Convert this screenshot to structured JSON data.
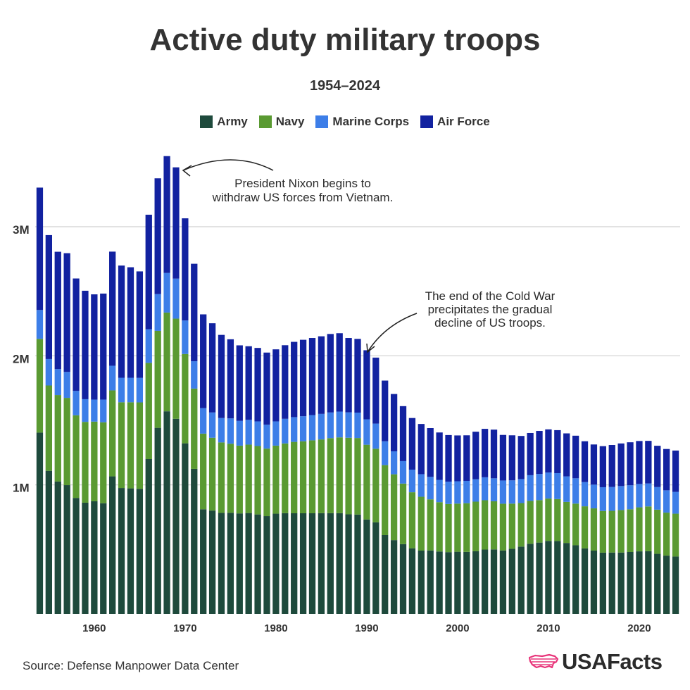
{
  "chart_data": {
    "type": "bar",
    "stacked": true,
    "title": "Active duty military troops",
    "subtitle": "1954–2024",
    "ylim": [
      0,
      3600000
    ],
    "yticks": [
      {
        "value": 1000000,
        "label": "1M"
      },
      {
        "value": 2000000,
        "label": "2M"
      },
      {
        "value": 3000000,
        "label": "3M"
      }
    ],
    "xticks": [
      1960,
      1970,
      1980,
      1990,
      2000,
      2010,
      2020
    ],
    "grid": true,
    "legend_position": "top-center",
    "years": [
      1954,
      1955,
      1956,
      1957,
      1958,
      1959,
      1960,
      1961,
      1962,
      1963,
      1964,
      1965,
      1966,
      1967,
      1968,
      1969,
      1970,
      1971,
      1972,
      1973,
      1974,
      1975,
      1976,
      1977,
      1978,
      1979,
      1980,
      1981,
      1982,
      1983,
      1984,
      1985,
      1986,
      1987,
      1988,
      1989,
      1990,
      1991,
      1992,
      1993,
      1994,
      1995,
      1996,
      1997,
      1998,
      1999,
      2000,
      2001,
      2002,
      2003,
      2004,
      2005,
      2006,
      2007,
      2008,
      2009,
      2010,
      2011,
      2012,
      2013,
      2014,
      2015,
      2016,
      2017,
      2018,
      2019,
      2020,
      2021,
      2022,
      2023,
      2024
    ],
    "series": [
      {
        "name": "Army",
        "color": "#1e4a3c",
        "values": [
          1405000,
          1109000,
          1026000,
          998000,
          899000,
          862000,
          873000,
          858000,
          1066000,
          976000,
          973000,
          969000,
          1200000,
          1442000,
          1570000,
          1512000,
          1322000,
          1124000,
          811000,
          801000,
          783000,
          784000,
          779000,
          782000,
          771000,
          758000,
          777000,
          781000,
          780000,
          780000,
          780000,
          781000,
          781000,
          781000,
          772000,
          770000,
          732000,
          710000,
          611000,
          572000,
          541000,
          509000,
          491000,
          492000,
          484000,
          479000,
          482000,
          481000,
          486000,
          499000,
          500000,
          492000,
          505000,
          522000,
          544000,
          553000,
          566000,
          565000,
          550000,
          532000,
          508000,
          491000,
          475000,
          476000,
          476000,
          480000,
          485000,
          486000,
          466000,
          452000,
          445000
        ]
      },
      {
        "name": "Navy",
        "color": "#5a9a32",
        "values": [
          726000,
          661000,
          670000,
          676000,
          640000,
          626000,
          617000,
          627000,
          666000,
          664000,
          667000,
          670000,
          745000,
          751000,
          765000,
          776000,
          692000,
          622000,
          586000,
          564000,
          546000,
          535000,
          525000,
          530000,
          530000,
          523000,
          527000,
          540000,
          553000,
          558000,
          565000,
          571000,
          581000,
          587000,
          593000,
          593000,
          579000,
          570000,
          542000,
          510000,
          469000,
          434000,
          417000,
          396000,
          382000,
          373000,
          373000,
          377000,
          384000,
          382000,
          373000,
          362000,
          350000,
          337000,
          332000,
          329000,
          328000,
          325000,
          318000,
          323000,
          326000,
          327000,
          323000,
          323000,
          329000,
          331000,
          341000,
          347000,
          342000,
          333000,
          332000
        ]
      },
      {
        "name": "Marine Corps",
        "color": "#3d7ee8",
        "values": [
          224000,
          205000,
          201000,
          201000,
          189000,
          176000,
          171000,
          176000,
          191000,
          190000,
          190000,
          190000,
          261000,
          285000,
          307000,
          310000,
          260000,
          212000,
          198000,
          196000,
          189000,
          196000,
          192000,
          192000,
          191000,
          185000,
          188000,
          191000,
          192000,
          194000,
          196000,
          198000,
          199000,
          200000,
          197000,
          197000,
          197000,
          195000,
          185000,
          178000,
          174000,
          175000,
          175000,
          174000,
          173000,
          173000,
          173000,
          173000,
          174000,
          178000,
          178000,
          180000,
          180000,
          186000,
          199000,
          203000,
          202000,
          201000,
          198000,
          196000,
          188000,
          184000,
          184000,
          185000,
          186000,
          186000,
          181000,
          178000,
          175000,
          173000,
          169000
        ]
      },
      {
        "name": "Air Force",
        "color": "#1222a0",
        "values": [
          948000,
          960000,
          909000,
          920000,
          871000,
          840000,
          815000,
          821000,
          884000,
          869000,
          856000,
          825000,
          887000,
          897000,
          905000,
          862000,
          791000,
          755000,
          726000,
          691000,
          644000,
          613000,
          585000,
          570000,
          569000,
          559000,
          558000,
          570000,
          583000,
          592000,
          597000,
          601000,
          608000,
          607000,
          576000,
          571000,
          535000,
          511000,
          470000,
          444000,
          426000,
          400000,
          389000,
          378000,
          367000,
          361000,
          355000,
          353000,
          368000,
          375000,
          377000,
          353000,
          349000,
          334000,
          327000,
          333000,
          334000,
          333000,
          333000,
          330000,
          316000,
          311000,
          318000,
          325000,
          330000,
          333000,
          333000,
          330000,
          320000,
          320000,
          320000
        ]
      }
    ],
    "annotations": [
      {
        "text_lines": [
          "President Nixon begins to",
          "withdraw US forces from Vietnam."
        ],
        "year": 1969
      },
      {
        "text_lines": [
          "The end of the Cold War",
          "precipitates the gradual",
          "decline of US troops."
        ],
        "year": 1990
      }
    ]
  },
  "source": "Source: Defense Manpower Data Center",
  "logo": {
    "text": "USAFacts",
    "color": "#e8357a"
  }
}
